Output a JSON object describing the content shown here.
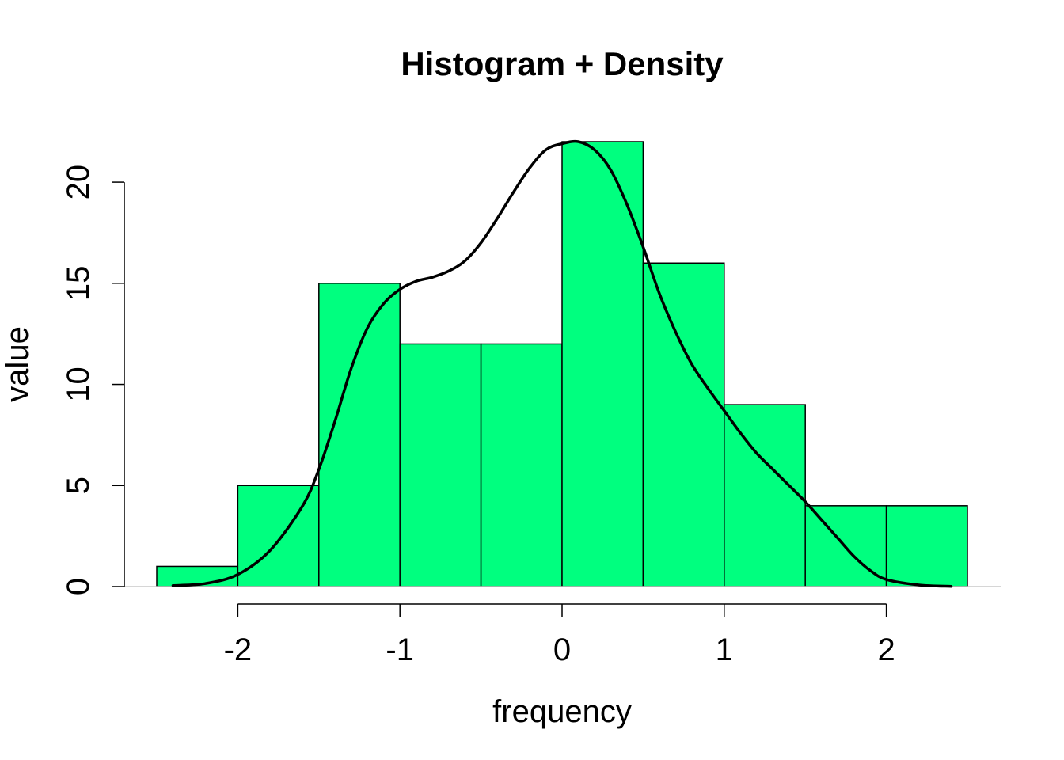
{
  "chart_data": {
    "type": "bar",
    "title": "Histogram + Density",
    "xlabel": "frequency",
    "ylabel": "value",
    "bin_edges": [
      -2.5,
      -2.0,
      -1.5,
      -1.0,
      -0.5,
      0.0,
      0.5,
      1.0,
      1.5,
      2.0,
      2.5
    ],
    "counts": [
      1,
      5,
      15,
      12,
      12,
      22,
      16,
      9,
      4,
      4
    ],
    "bar_color": "#00FF7F",
    "x_ticks": [
      -2,
      -1,
      0,
      1,
      2
    ],
    "x_tick_labels": [
      "-2",
      "-1",
      "0",
      "1",
      "2"
    ],
    "y_ticks": [
      0,
      5,
      10,
      15,
      20
    ],
    "y_tick_labels": [
      "0",
      "5",
      "10",
      "15",
      "20"
    ],
    "xlim": [
      -2.5,
      2.5
    ],
    "ylim": [
      0,
      22
    ],
    "density_curve": {
      "color": "#000000",
      "x": [
        -2.4,
        -2.2,
        -2.0,
        -1.8,
        -1.6,
        -1.5,
        -1.4,
        -1.3,
        -1.2,
        -1.1,
        -1.0,
        -0.9,
        -0.8,
        -0.7,
        -0.6,
        -0.5,
        -0.4,
        -0.3,
        -0.2,
        -0.1,
        0.0,
        0.1,
        0.2,
        0.3,
        0.4,
        0.5,
        0.6,
        0.7,
        0.8,
        0.9,
        1.0,
        1.1,
        1.2,
        1.3,
        1.4,
        1.5,
        1.6,
        1.7,
        1.8,
        1.9,
        2.0,
        2.2,
        2.4
      ],
      "y": [
        0.05,
        0.15,
        0.6,
        1.8,
        4.0,
        5.8,
        8.2,
        10.8,
        12.8,
        14.0,
        14.7,
        15.1,
        15.3,
        15.6,
        16.1,
        17.0,
        18.2,
        19.5,
        20.7,
        21.6,
        21.9,
        22.0,
        21.6,
        20.6,
        18.9,
        16.8,
        14.5,
        12.6,
        11.0,
        9.8,
        8.7,
        7.6,
        6.6,
        5.8,
        5.0,
        4.2,
        3.3,
        2.4,
        1.5,
        0.8,
        0.35,
        0.08,
        0.01
      ]
    }
  }
}
